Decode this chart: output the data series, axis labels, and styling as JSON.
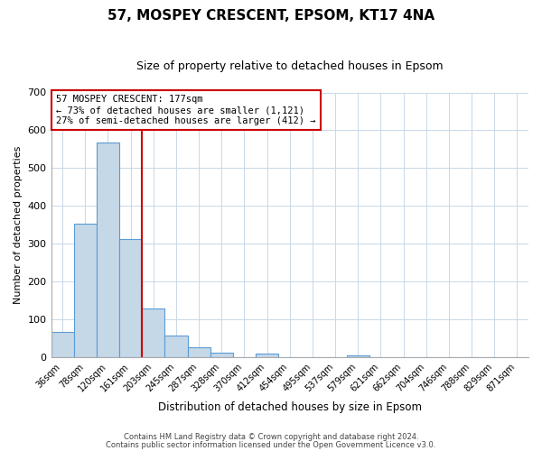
{
  "title": "57, MOSPEY CRESCENT, EPSOM, KT17 4NA",
  "subtitle": "Size of property relative to detached houses in Epsom",
  "xlabel": "Distribution of detached houses by size in Epsom",
  "ylabel": "Number of detached properties",
  "bar_labels": [
    "36sqm",
    "78sqm",
    "120sqm",
    "161sqm",
    "203sqm",
    "245sqm",
    "287sqm",
    "328sqm",
    "370sqm",
    "412sqm",
    "454sqm",
    "495sqm",
    "537sqm",
    "579sqm",
    "621sqm",
    "662sqm",
    "704sqm",
    "746sqm",
    "788sqm",
    "829sqm",
    "871sqm"
  ],
  "bar_values": [
    68,
    354,
    567,
    313,
    130,
    57,
    27,
    14,
    0,
    10,
    0,
    0,
    0,
    5,
    0,
    0,
    0,
    0,
    0,
    0,
    0
  ],
  "bar_color": "#c5d8e8",
  "bar_edge_color": "#5b9bd5",
  "vline_color": "#cc0000",
  "ylim": [
    0,
    700
  ],
  "yticks": [
    0,
    100,
    200,
    300,
    400,
    500,
    600,
    700
  ],
  "annotation_title": "57 MOSPEY CRESCENT: 177sqm",
  "annotation_line1": "← 73% of detached houses are smaller (1,121)",
  "annotation_line2": "27% of semi-detached houses are larger (412) →",
  "annotation_box_color": "#ffffff",
  "annotation_box_edge": "#cc0000",
  "footer_line1": "Contains HM Land Registry data © Crown copyright and database right 2024.",
  "footer_line2": "Contains public sector information licensed under the Open Government Licence v3.0.",
  "background_color": "#ffffff",
  "grid_color": "#c8d8e8",
  "title_fontsize": 11,
  "subtitle_fontsize": 9
}
